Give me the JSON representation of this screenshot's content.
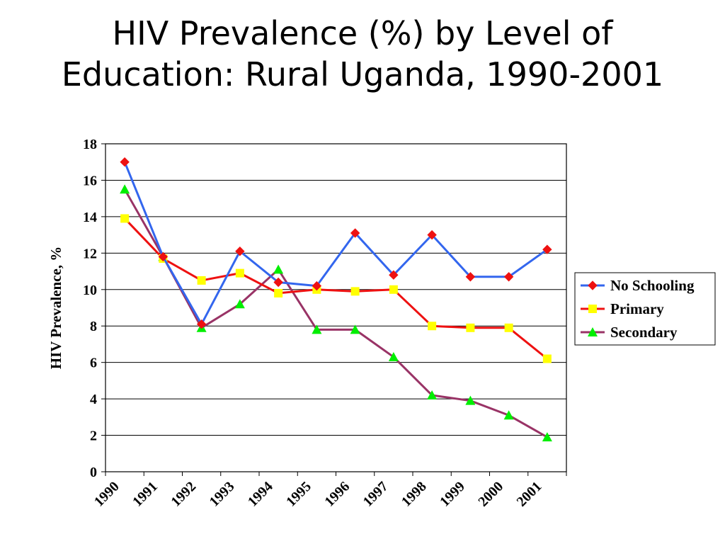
{
  "slide": {
    "title_line1": "HIV Prevalence (%) by Level of",
    "title_line2": "Education: Rural Uganda, 1990-2001"
  },
  "chart_data": {
    "type": "line",
    "title": "HIV Prevalence (%) by Level of Education: Rural Uganda, 1990-2001",
    "xlabel": "",
    "ylabel": "HIV Prevalence, %",
    "categories": [
      "1990",
      "1991",
      "1992",
      "1993",
      "1994",
      "1995",
      "1996",
      "1997",
      "1998",
      "1999",
      "2000",
      "2001"
    ],
    "ylim": [
      0,
      18
    ],
    "yticks": [
      0,
      2,
      4,
      6,
      8,
      10,
      12,
      14,
      16,
      18
    ],
    "grid": "horizontal",
    "legend_position": "right",
    "series": [
      {
        "name": "No Schooling",
        "line_color": "#3366ee",
        "marker": "diamond",
        "marker_color": "#ee1111",
        "values": [
          17.0,
          11.8,
          8.1,
          12.1,
          10.4,
          10.2,
          13.1,
          10.8,
          13.0,
          10.7,
          10.7,
          12.2
        ]
      },
      {
        "name": "Primary",
        "line_color": "#ee1111",
        "marker": "square",
        "marker_color": "#ffff00",
        "values": [
          13.9,
          11.7,
          10.5,
          10.9,
          9.8,
          10.0,
          9.9,
          10.0,
          8.0,
          7.9,
          7.9,
          6.2
        ]
      },
      {
        "name": "Secondary",
        "line_color": "#993366",
        "marker": "triangle",
        "marker_color": "#00ee00",
        "values": [
          15.5,
          11.8,
          7.9,
          9.2,
          11.1,
          7.8,
          7.8,
          6.3,
          4.2,
          3.9,
          3.1,
          1.9
        ]
      }
    ]
  }
}
